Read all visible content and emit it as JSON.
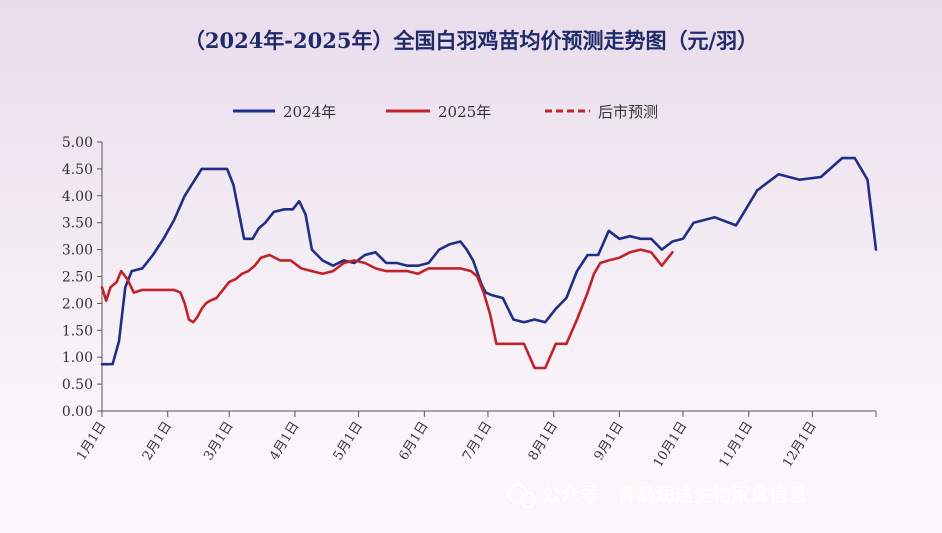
{
  "chart_data": {
    "type": "line",
    "title": "（2024年-2025年）全国白羽鸡苗均价预测走势图（元/羽）",
    "xlabel": "",
    "ylabel": "",
    "ylim": [
      0,
      5
    ],
    "yticks": [
      "0.00",
      "0.50",
      "1.00",
      "1.50",
      "2.00",
      "2.50",
      "3.00",
      "3.50",
      "4.00",
      "4.50",
      "5.00"
    ],
    "xticks": [
      "1月1日",
      "2月1日",
      "3月1日",
      "4月1日",
      "5月1日",
      "6月1日",
      "7月1日",
      "8月1日",
      "9月1日",
      "10月1日",
      "11月1日",
      "12月1日"
    ],
    "legend_position": "top",
    "grid": false,
    "series": [
      {
        "name": "2024年",
        "color": "#1f2f86",
        "style": "solid",
        "x": [
          1,
          6,
          9,
          12,
          15,
          20,
          25,
          30,
          35,
          40,
          48,
          55,
          60,
          63,
          66,
          68,
          72,
          75,
          78,
          82,
          87,
          91,
          94,
          97,
          100,
          105,
          110,
          115,
          120,
          125,
          130,
          135,
          140,
          145,
          150,
          155,
          160,
          165,
          170,
          173,
          176,
          180,
          182,
          185,
          190,
          195,
          200,
          205,
          210,
          215,
          220,
          225,
          230,
          235,
          240,
          245,
          250,
          255,
          260,
          265,
          270,
          275,
          280,
          285,
          290,
          300,
          310,
          320,
          330,
          340,
          350,
          356,
          362,
          366
        ],
        "values": [
          0.87,
          0.87,
          1.3,
          2.3,
          2.6,
          2.65,
          2.9,
          3.2,
          3.55,
          4.0,
          4.5,
          4.5,
          4.5,
          4.2,
          3.6,
          3.2,
          3.2,
          3.4,
          3.5,
          3.7,
          3.75,
          3.75,
          3.9,
          3.65,
          3.0,
          2.8,
          2.7,
          2.8,
          2.75,
          2.9,
          2.95,
          2.75,
          2.75,
          2.7,
          2.7,
          2.75,
          3.0,
          3.1,
          3.15,
          3.0,
          2.8,
          2.35,
          2.2,
          2.15,
          2.1,
          1.7,
          1.65,
          1.7,
          1.65,
          1.9,
          2.1,
          2.6,
          2.9,
          2.9,
          3.35,
          3.2,
          3.25,
          3.2,
          3.2,
          3.0,
          3.15,
          3.2,
          3.5,
          3.55,
          3.6,
          3.45,
          4.1,
          4.4,
          4.3,
          4.35,
          4.7,
          4.7,
          4.3,
          3.0
        ]
      },
      {
        "name": "2025年",
        "color": "#c0242a",
        "style": "solid",
        "x": [
          1,
          3,
          5,
          8,
          10,
          13,
          16,
          20,
          25,
          30,
          35,
          38,
          40,
          42,
          44,
          46,
          48,
          50,
          52,
          55,
          58,
          61,
          64,
          67,
          70,
          73,
          76,
          80,
          85,
          90,
          95,
          100,
          105,
          110,
          115,
          120,
          125,
          130,
          135,
          140,
          145,
          150,
          155,
          160,
          165,
          170,
          175,
          178,
          181,
          184,
          187,
          190,
          195,
          200,
          205,
          210,
          215,
          220,
          225,
          230,
          233,
          236,
          240,
          245,
          250,
          255,
          260,
          265,
          270
        ],
        "values": [
          2.3,
          2.05,
          2.3,
          2.4,
          2.6,
          2.45,
          2.2,
          2.25,
          2.25,
          2.25,
          2.25,
          2.2,
          2.0,
          1.7,
          1.65,
          1.75,
          1.9,
          2.0,
          2.05,
          2.1,
          2.25,
          2.4,
          2.45,
          2.55,
          2.6,
          2.7,
          2.85,
          2.9,
          2.8,
          2.8,
          2.65,
          2.6,
          2.55,
          2.6,
          2.75,
          2.8,
          2.75,
          2.65,
          2.6,
          2.6,
          2.6,
          2.55,
          2.65,
          2.65,
          2.65,
          2.65,
          2.6,
          2.5,
          2.2,
          1.8,
          1.25,
          1.25,
          1.25,
          1.25,
          0.8,
          0.8,
          1.25,
          1.25,
          1.7,
          2.2,
          2.55,
          2.75,
          2.8,
          2.85,
          2.95,
          3.0,
          2.95,
          2.7,
          2.95
        ]
      },
      {
        "name": "后市预测",
        "color": "#c0242a",
        "style": "dashed",
        "x": [],
        "values": []
      }
    ]
  },
  "watermark": {
    "text": "公众号 · 青岛润达生物家禽信息"
  }
}
